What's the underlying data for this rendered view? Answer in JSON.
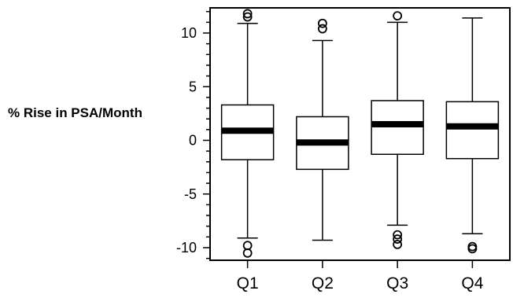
{
  "chart_data": {
    "type": "box",
    "title": "",
    "xlabel": "",
    "ylabel": "% Rise in PSA/Month",
    "ylim": [
      -11,
      12
    ],
    "yticks": [
      -10,
      -5,
      0,
      5,
      10
    ],
    "grid": false,
    "categories": [
      "Q1",
      "Q2",
      "Q3",
      "Q4"
    ],
    "boxes": [
      {
        "category": "Q1",
        "whisker_low": -9.1,
        "q1": -1.8,
        "median": 0.9,
        "q3": 3.3,
        "whisker_high": 10.9,
        "outliers": [
          11.5,
          11.8,
          -9.8,
          -10.5
        ]
      },
      {
        "category": "Q2",
        "whisker_low": -9.3,
        "q1": -2.7,
        "median": -0.2,
        "q3": 2.2,
        "whisker_high": 9.3,
        "outliers": [
          10.4,
          10.9
        ]
      },
      {
        "category": "Q3",
        "whisker_low": -7.9,
        "q1": -1.3,
        "median": 1.5,
        "q3": 3.7,
        "whisker_high": 11.0,
        "outliers": [
          11.6,
          -8.8,
          -9.2,
          -9.7
        ]
      },
      {
        "category": "Q4",
        "whisker_low": -8.7,
        "q1": -1.7,
        "median": 1.3,
        "q3": 3.6,
        "whisker_high": 11.4,
        "outliers": [
          -9.9,
          -10.1
        ]
      }
    ]
  }
}
